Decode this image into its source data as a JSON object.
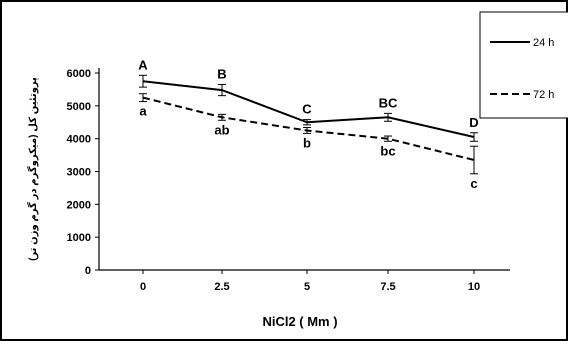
{
  "chart_data": {
    "type": "line",
    "x": [
      0,
      2.5,
      5,
      7.5,
      10
    ],
    "x_tick_labels": [
      "0",
      "2.5",
      "5",
      "7.5",
      "10"
    ],
    "xlabel": "NiCl2 ( Mm )",
    "ylabel": "پروتئین کل (میکروگرم در گرم وزن تر)",
    "ylim": [
      0,
      6000
    ],
    "y_ticks": [
      0,
      1000,
      2000,
      3000,
      4000,
      5000,
      6000
    ],
    "grid": false,
    "legend_position": "top-right",
    "series": [
      {
        "name": "24 h",
        "line_style": "solid",
        "color": "#000000",
        "values": [
          5750,
          5480,
          4500,
          4650,
          4050
        ],
        "errors": [
          180,
          170,
          80,
          120,
          130
        ],
        "significance_letters": [
          "A",
          "B",
          "C",
          "BC",
          "D"
        ],
        "letter_position": "above"
      },
      {
        "name": "72 h",
        "line_style": "dashed",
        "color": "#000000",
        "values": [
          5250,
          4650,
          4250,
          4000,
          3350
        ],
        "errors": [
          120,
          90,
          90,
          80,
          420
        ],
        "significance_letters": [
          "a",
          "ab",
          "b",
          "bc",
          "c"
        ],
        "letter_position": "below"
      }
    ]
  }
}
